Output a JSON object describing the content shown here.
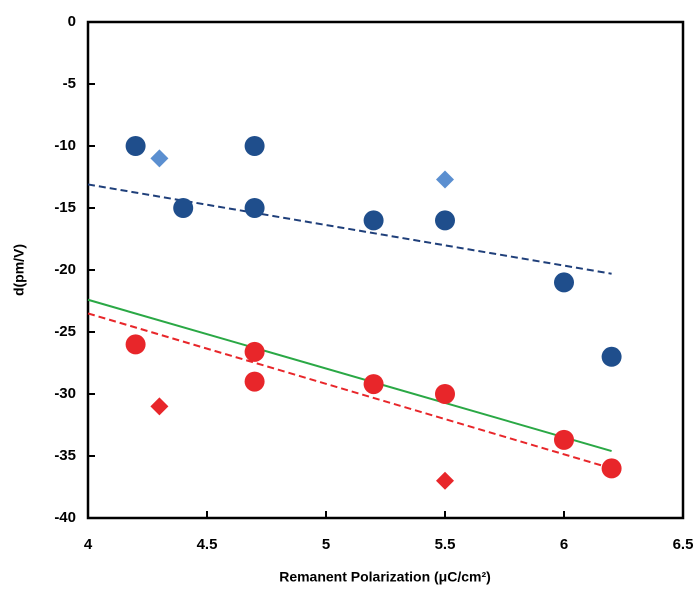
{
  "chart_data": {
    "type": "scatter",
    "x_label": "Remanent Polarization (μC/cm²)",
    "y_label": "d(pm/V)",
    "xlim": [
      4,
      6.5
    ],
    "xticks": [
      4,
      4.5,
      5,
      5.5,
      6,
      6.5
    ],
    "ylim": [
      -40,
      0
    ],
    "yticks": [
      -40,
      -35,
      -30,
      -25,
      -20,
      -15,
      -10,
      -5,
      0
    ],
    "grid": false,
    "series": [
      {
        "color": "#1f4e8c",
        "marker": "circle",
        "x": [
          4.2,
          4.4,
          4.7,
          4.7,
          5.2,
          5.5,
          6,
          6.2
        ],
        "values": [
          -10,
          -15,
          -10,
          -15,
          -16,
          -16,
          -21,
          -27
        ]
      },
      {
        "color": "#5b8fd0",
        "marker": "diamond",
        "x": [
          4.3,
          5.5
        ],
        "values": [
          -11,
          -12.7
        ]
      },
      {
        "color": "#e8262a",
        "marker": "circle",
        "x": [
          4.2,
          4.7,
          4.7,
          5.2,
          5.5,
          6,
          6.2
        ],
        "values": [
          -26,
          -26.6,
          -29,
          -29.2,
          -30,
          -33.7,
          -36
        ]
      },
      {
        "color": "#e8262a",
        "marker": "diamond",
        "x": [
          4.3,
          5.5
        ],
        "values": [
          -31,
          -37
        ]
      }
    ],
    "trend_lines": [
      {
        "color": "#1f3f7a",
        "dash": true,
        "x": [
          4,
          6.2
        ],
        "values": [
          -13.1,
          -20.3
        ]
      },
      {
        "color": "#2aa845",
        "dash": false,
        "x": [
          4,
          6.2
        ],
        "values": [
          -22.4,
          -34.6
        ]
      },
      {
        "color": "#e8262a",
        "dash": true,
        "x": [
          4,
          6.2
        ],
        "values": [
          -23.5,
          -36
        ]
      }
    ]
  }
}
